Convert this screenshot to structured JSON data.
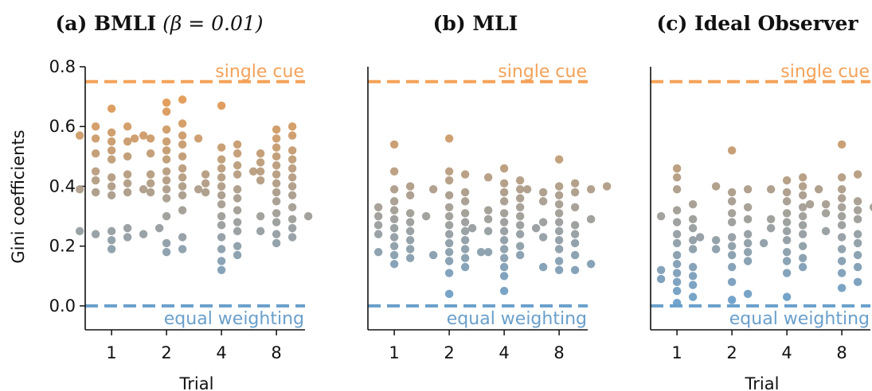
{
  "colors": {
    "single_cue": "#F4A259",
    "equal_weighting": "#6A9FCB",
    "axis": "#111111"
  },
  "chart_data": [
    {
      "type": "scatter",
      "title": "(a) BMLI (β = 0.01)",
      "title_main": "(a) BMLI",
      "title_math": "(β = 0.01)",
      "categories": [
        "1",
        "2",
        "4",
        "8"
      ],
      "xlabel": "Trial",
      "ylabel": "Gini coefficients",
      "ylim": [
        -0.08,
        0.8
      ],
      "yticks": [
        "0.0",
        "0.2",
        "0.4",
        "0.6",
        "0.8"
      ],
      "ytick_values": [
        0.0,
        0.2,
        0.4,
        0.6,
        0.8
      ],
      "reference_lines": [
        {
          "name": "single cue",
          "label": "single cue",
          "value": 0.75
        },
        {
          "name": "equal weighting",
          "label": "equal weighting",
          "value": 0.0
        }
      ],
      "series": [
        {
          "category": "1",
          "values": [
            0.66,
            0.6,
            0.6,
            0.58,
            0.57,
            0.57,
            0.56,
            0.55,
            0.55,
            0.52,
            0.51,
            0.5,
            0.49,
            0.45,
            0.44,
            0.43,
            0.42,
            0.41,
            0.4,
            0.39,
            0.39,
            0.38,
            0.38,
            0.37,
            0.26,
            0.26,
            0.25,
            0.25,
            0.24,
            0.24,
            0.23,
            0.22,
            0.19
          ]
        },
        {
          "category": "2",
          "values": [
            0.69,
            0.68,
            0.65,
            0.61,
            0.59,
            0.57,
            0.56,
            0.56,
            0.56,
            0.55,
            0.54,
            0.52,
            0.51,
            0.5,
            0.49,
            0.46,
            0.45,
            0.44,
            0.43,
            0.42,
            0.41,
            0.4,
            0.39,
            0.39,
            0.38,
            0.37,
            0.36,
            0.32,
            0.3,
            0.23,
            0.21,
            0.19,
            0.18
          ]
        },
        {
          "category": "4",
          "values": [
            0.67,
            0.54,
            0.53,
            0.51,
            0.49,
            0.47,
            0.46,
            0.45,
            0.44,
            0.44,
            0.43,
            0.41,
            0.4,
            0.39,
            0.38,
            0.37,
            0.36,
            0.34,
            0.32,
            0.3,
            0.28,
            0.27,
            0.25,
            0.23,
            0.2,
            0.19,
            0.17,
            0.15,
            0.12
          ]
        },
        {
          "category": "8",
          "values": [
            0.6,
            0.59,
            0.57,
            0.56,
            0.53,
            0.52,
            0.51,
            0.5,
            0.49,
            0.48,
            0.47,
            0.46,
            0.45,
            0.44,
            0.43,
            0.42,
            0.41,
            0.4,
            0.38,
            0.37,
            0.35,
            0.33,
            0.31,
            0.3,
            0.3,
            0.29,
            0.28,
            0.26,
            0.25,
            0.24,
            0.23,
            0.21
          ]
        }
      ]
    },
    {
      "type": "scatter",
      "title": "(b) MLI",
      "title_main": "(b) MLI",
      "title_math": "",
      "categories": [
        "1",
        "2",
        "4",
        "8"
      ],
      "xlabel": "",
      "ylabel": "",
      "ylim": [
        -0.08,
        0.8
      ],
      "yticks": [],
      "ytick_values": [],
      "reference_lines": [
        {
          "name": "single cue",
          "label": "single cue",
          "value": 0.75
        },
        {
          "name": "equal weighting",
          "label": "equal weighting",
          "value": 0.0
        }
      ],
      "series": [
        {
          "category": "1",
          "values": [
            0.54,
            0.45,
            0.4,
            0.39,
            0.37,
            0.35,
            0.33,
            0.32,
            0.31,
            0.3,
            0.3,
            0.29,
            0.28,
            0.27,
            0.26,
            0.25,
            0.24,
            0.23,
            0.22,
            0.2,
            0.19,
            0.18,
            0.17,
            0.16,
            0.14
          ]
        },
        {
          "category": "2",
          "values": [
            0.56,
            0.45,
            0.44,
            0.42,
            0.39,
            0.38,
            0.37,
            0.35,
            0.33,
            0.31,
            0.3,
            0.28,
            0.27,
            0.25,
            0.24,
            0.22,
            0.21,
            0.19,
            0.18,
            0.18,
            0.17,
            0.16,
            0.15,
            0.13,
            0.11,
            0.04
          ]
        },
        {
          "category": "4",
          "values": [
            0.46,
            0.43,
            0.42,
            0.41,
            0.39,
            0.38,
            0.36,
            0.35,
            0.33,
            0.32,
            0.31,
            0.3,
            0.29,
            0.28,
            0.27,
            0.26,
            0.26,
            0.25,
            0.25,
            0.24,
            0.22,
            0.2,
            0.19,
            0.18,
            0.17,
            0.16,
            0.13,
            0.1,
            0.05
          ]
        },
        {
          "category": "8",
          "values": [
            0.49,
            0.41,
            0.4,
            0.4,
            0.39,
            0.39,
            0.38,
            0.38,
            0.37,
            0.35,
            0.34,
            0.33,
            0.31,
            0.29,
            0.28,
            0.28,
            0.27,
            0.25,
            0.24,
            0.23,
            0.22,
            0.21,
            0.19,
            0.17,
            0.15,
            0.14,
            0.13,
            0.12,
            0.12
          ]
        }
      ]
    },
    {
      "type": "scatter",
      "title": "(c) Ideal Observer",
      "title_main": "(c) Ideal Observer",
      "title_math": "",
      "categories": [
        "1",
        "2",
        "4",
        "8"
      ],
      "xlabel": "Trial",
      "ylabel": "",
      "ylim": [
        -0.08,
        0.8
      ],
      "yticks": [],
      "ytick_values": [],
      "reference_lines": [
        {
          "name": "single cue",
          "label": "single cue",
          "value": 0.75
        },
        {
          "name": "equal weighting",
          "label": "equal weighting",
          "value": 0.0
        }
      ],
      "series": [
        {
          "category": "1",
          "values": [
            0.46,
            0.43,
            0.39,
            0.34,
            0.32,
            0.3,
            0.29,
            0.28,
            0.26,
            0.24,
            0.22,
            0.21,
            0.19,
            0.17,
            0.14,
            0.13,
            0.12,
            0.11,
            0.1,
            0.09,
            0.08,
            0.07,
            0.05,
            0.03,
            0.01
          ]
        },
        {
          "category": "2",
          "values": [
            0.52,
            0.4,
            0.39,
            0.38,
            0.35,
            0.33,
            0.31,
            0.29,
            0.28,
            0.24,
            0.23,
            0.23,
            0.22,
            0.21,
            0.21,
            0.2,
            0.19,
            0.18,
            0.17,
            0.15,
            0.13,
            0.08,
            0.04,
            0.02
          ]
        },
        {
          "category": "4",
          "values": [
            0.43,
            0.42,
            0.4,
            0.39,
            0.39,
            0.38,
            0.37,
            0.35,
            0.33,
            0.31,
            0.3,
            0.29,
            0.28,
            0.27,
            0.26,
            0.25,
            0.24,
            0.22,
            0.2,
            0.18,
            0.16,
            0.15,
            0.13,
            0.11,
            0.03
          ]
        },
        {
          "category": "8",
          "values": [
            0.54,
            0.44,
            0.43,
            0.39,
            0.36,
            0.35,
            0.34,
            0.34,
            0.33,
            0.33,
            0.32,
            0.31,
            0.3,
            0.29,
            0.27,
            0.25,
            0.24,
            0.23,
            0.21,
            0.19,
            0.17,
            0.15,
            0.13,
            0.11,
            0.08,
            0.06
          ]
        }
      ]
    }
  ]
}
